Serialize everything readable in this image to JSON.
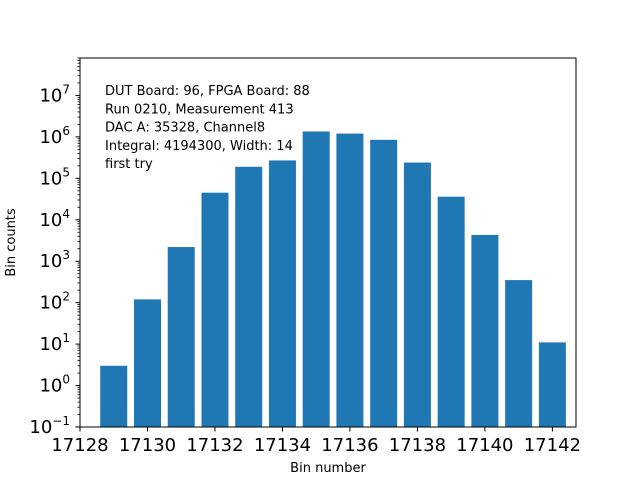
{
  "chart_data": {
    "type": "bar",
    "title": "",
    "xlabel": "Bin number",
    "ylabel": "Bin counts",
    "y_scale": "log",
    "grid": false,
    "bar_color": "#1f77b4",
    "x": [
      17129,
      17130,
      17131,
      17132,
      17133,
      17134,
      17135,
      17136,
      17137,
      17138,
      17139,
      17140,
      17141,
      17142
    ],
    "values": [
      3,
      120,
      2200,
      45000,
      190000,
      270000,
      1350000,
      1200000,
      850000,
      240000,
      36000,
      4300,
      350,
      11
    ],
    "xlim": [
      17128,
      17142.7
    ],
    "ylim": [
      0.1,
      80000000
    ],
    "x_ticks": [
      {
        "value": 17128,
        "label": "17128"
      },
      {
        "value": 17130,
        "label": "17130"
      },
      {
        "value": 17132,
        "label": "17132"
      },
      {
        "value": 17134,
        "label": "17134"
      },
      {
        "value": 17136,
        "label": "17136"
      },
      {
        "value": 17138,
        "label": "17138"
      },
      {
        "value": 17140,
        "label": "17140"
      },
      {
        "value": 17142,
        "label": "17142"
      }
    ],
    "y_ticks": [
      {
        "value": 0.1,
        "base": "10",
        "exp": "−1"
      },
      {
        "value": 1,
        "base": "10",
        "exp": "0"
      },
      {
        "value": 10,
        "base": "10",
        "exp": "1"
      },
      {
        "value": 100,
        "base": "10",
        "exp": "2"
      },
      {
        "value": 1000,
        "base": "10",
        "exp": "3"
      },
      {
        "value": 10000,
        "base": "10",
        "exp": "4"
      },
      {
        "value": 100000,
        "base": "10",
        "exp": "5"
      },
      {
        "value": 1000000,
        "base": "10",
        "exp": "6"
      },
      {
        "value": 10000000,
        "base": "10",
        "exp": "7"
      }
    ],
    "annotation_lines": [
      "DUT Board: 96, FPGA Board: 88",
      "Run 0210, Measurement 413",
      "DAC A: 35328, Channel8",
      "Integral: 4194300, Width: 14",
      "first try"
    ]
  }
}
